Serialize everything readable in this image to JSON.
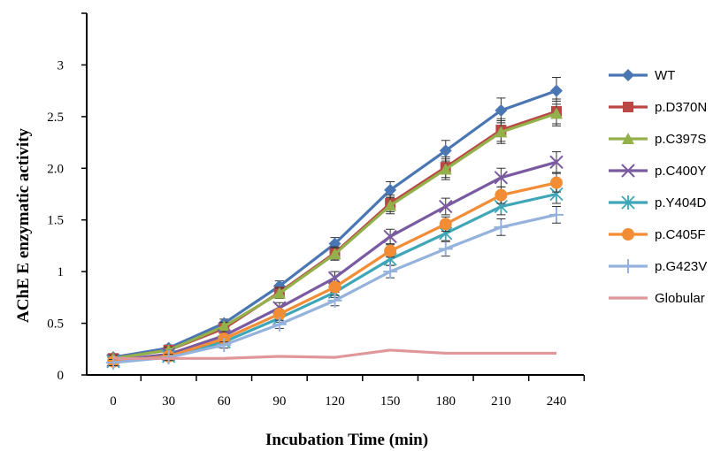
{
  "chart_data": {
    "type": "line",
    "title": "",
    "xlabel": "Incubation Time (min)",
    "ylabel": "AChE  E  enzymatic activity",
    "x": [
      0,
      30,
      60,
      90,
      120,
      150,
      180,
      210,
      240
    ],
    "x_tick_labels": [
      "0",
      "30",
      "60",
      "90",
      "120",
      "150",
      "180",
      "210",
      "240"
    ],
    "y_ticks": [
      {
        "value": 0,
        "label": "0"
      },
      {
        "value": 0.5,
        "label": "0.5"
      },
      {
        "value": 1.0,
        "label": "1"
      },
      {
        "value": 1.5,
        "label": "1.5"
      },
      {
        "value": 2.0,
        "label": "2.0"
      },
      {
        "value": 2.5,
        "label": "2.5"
      },
      {
        "value": 3.0,
        "label": "3"
      }
    ],
    "ylim": [
      0,
      3.5
    ],
    "grid": false,
    "legend_position": "right",
    "series": [
      {
        "name": "WT",
        "color": "#4a76b3",
        "marker": "diamond",
        "values": [
          0.17,
          0.26,
          0.5,
          0.86,
          1.27,
          1.79,
          2.17,
          2.56,
          2.75
        ],
        "errors": [
          0.03,
          0.03,
          0.04,
          0.05,
          0.06,
          0.08,
          0.1,
          0.12,
          0.13
        ]
      },
      {
        "name": "p.D370N",
        "color": "#b94845",
        "marker": "square",
        "values": [
          0.16,
          0.24,
          0.45,
          0.8,
          1.18,
          1.66,
          2.01,
          2.37,
          2.55
        ],
        "errors": [
          0.03,
          0.03,
          0.04,
          0.05,
          0.06,
          0.08,
          0.1,
          0.11,
          0.12
        ]
      },
      {
        "name": "p.C397S",
        "color": "#93b04a",
        "marker": "triangle",
        "values": [
          0.16,
          0.24,
          0.47,
          0.79,
          1.17,
          1.64,
          1.99,
          2.35,
          2.53
        ],
        "errors": [
          0.03,
          0.03,
          0.04,
          0.05,
          0.06,
          0.08,
          0.1,
          0.11,
          0.12
        ]
      },
      {
        "name": "p.C400Y",
        "color": "#7a5aa0",
        "marker": "x",
        "values": [
          0.14,
          0.2,
          0.38,
          0.65,
          0.94,
          1.34,
          1.63,
          1.91,
          2.06
        ],
        "errors": [
          0.03,
          0.03,
          0.04,
          0.05,
          0.06,
          0.07,
          0.08,
          0.09,
          0.1
        ]
      },
      {
        "name": "p.Y404D",
        "color": "#3fa6b8",
        "marker": "star",
        "values": [
          0.13,
          0.18,
          0.32,
          0.55,
          0.8,
          1.12,
          1.37,
          1.63,
          1.75
        ],
        "errors": [
          0.03,
          0.03,
          0.03,
          0.04,
          0.05,
          0.06,
          0.07,
          0.08,
          0.09
        ]
      },
      {
        "name": "p.C405F",
        "color": "#f28d35",
        "marker": "circle",
        "values": [
          0.13,
          0.18,
          0.35,
          0.59,
          0.85,
          1.2,
          1.46,
          1.74,
          1.86
        ],
        "errors": [
          0.03,
          0.03,
          0.03,
          0.04,
          0.05,
          0.06,
          0.07,
          0.08,
          0.09
        ]
      },
      {
        "name": "p.G423V",
        "color": "#94b2dc",
        "marker": "plus",
        "values": [
          0.12,
          0.17,
          0.29,
          0.49,
          0.72,
          1.0,
          1.22,
          1.43,
          1.55
        ],
        "errors": [
          0.03,
          0.03,
          0.03,
          0.04,
          0.05,
          0.06,
          0.07,
          0.08,
          0.08
        ]
      },
      {
        "name": "Globular",
        "color": "#e0979a",
        "marker": "none",
        "values": [
          0.16,
          0.16,
          0.16,
          0.18,
          0.17,
          0.24,
          0.21,
          0.21,
          0.21
        ],
        "errors": []
      }
    ]
  }
}
